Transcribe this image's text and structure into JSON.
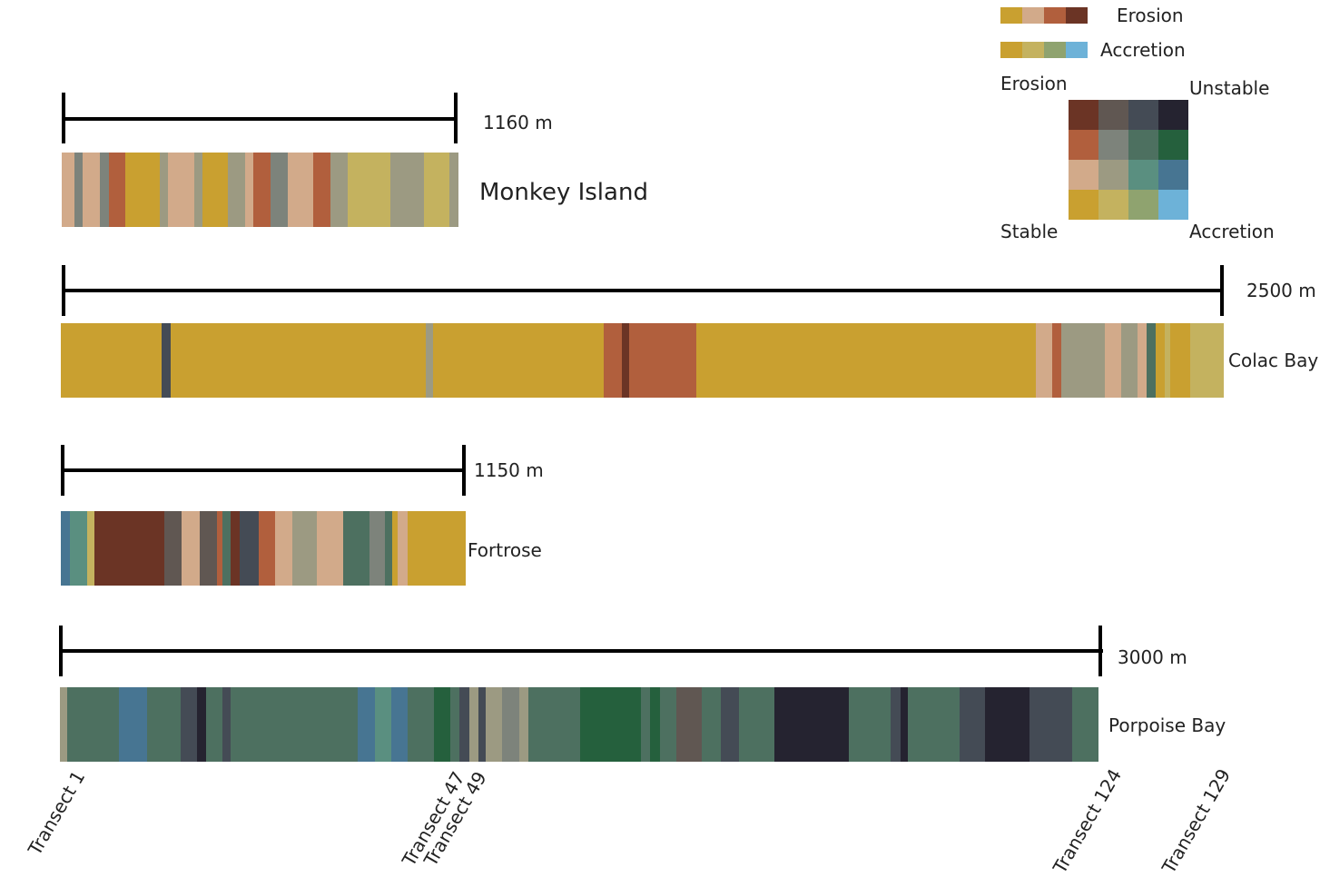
{
  "legend": {
    "erosion_label": "Erosion",
    "accretion_label": "Accretion",
    "erosion_ramp": [
      "#c9a030",
      "#d2aa8a",
      "#b15f3d",
      "#6b3425"
    ],
    "accretion_ramp": [
      "#c9a030",
      "#c4b25f",
      "#8fa36f",
      "#6db2d8"
    ],
    "matrix_labels": {
      "top_left": "Erosion",
      "top_right": "Unstable",
      "bottom_left": "Stable",
      "bottom_right": "Accretion"
    },
    "matrix_colors": [
      [
        "#6b3425",
        "#605752",
        "#444b55",
        "#252330"
      ],
      [
        "#b15f3d",
        "#7d837b",
        "#4d7060",
        "#25603d"
      ],
      [
        "#d2aa8a",
        "#9c9a82",
        "#5a8f80",
        "#477592"
      ],
      [
        "#c9a030",
        "#c4b25f",
        "#8fa36f",
        "#6db2d8"
      ]
    ]
  },
  "sites": [
    {
      "name": "Monkey Island",
      "scale_label": "1160 m",
      "segments": [
        {
          "c": "#d2aa8a",
          "w": 3
        },
        {
          "c": "#7d837b",
          "w": 2
        },
        {
          "c": "#d2aa8a",
          "w": 4
        },
        {
          "c": "#7d837b",
          "w": 2
        },
        {
          "c": "#b15f3d",
          "w": 4
        },
        {
          "c": "#c9a030",
          "w": 8
        },
        {
          "c": "#9c9a82",
          "w": 2
        },
        {
          "c": "#d2aa8a",
          "w": 6
        },
        {
          "c": "#9c9a82",
          "w": 2
        },
        {
          "c": "#c9a030",
          "w": 6
        },
        {
          "c": "#9c9a82",
          "w": 4
        },
        {
          "c": "#d2aa8a",
          "w": 2
        },
        {
          "c": "#b15f3d",
          "w": 4
        },
        {
          "c": "#7d837b",
          "w": 4
        },
        {
          "c": "#d2aa8a",
          "w": 6
        },
        {
          "c": "#b15f3d",
          "w": 4
        },
        {
          "c": "#9c9a82",
          "w": 4
        },
        {
          "c": "#c4b25f",
          "w": 10
        },
        {
          "c": "#9c9a82",
          "w": 8
        },
        {
          "c": "#c4b25f",
          "w": 6
        },
        {
          "c": "#9c9a82",
          "w": 2
        }
      ]
    },
    {
      "name": "Colac Bay",
      "scale_label": "2500 m",
      "segments": [
        {
          "c": "#c9a030",
          "w": 111
        },
        {
          "c": "#444b55",
          "w": 10
        },
        {
          "c": "#c9a030",
          "w": 281
        },
        {
          "c": "#9c9a82",
          "w": 8
        },
        {
          "c": "#c9a030",
          "w": 188
        },
        {
          "c": "#b15f3d",
          "w": 20
        },
        {
          "c": "#6b3425",
          "w": 8
        },
        {
          "c": "#b15f3d",
          "w": 74
        },
        {
          "c": "#c9a030",
          "w": 374
        },
        {
          "c": "#d2aa8a",
          "w": 18
        },
        {
          "c": "#b15f3d",
          "w": 10
        },
        {
          "c": "#9c9a82",
          "w": 48
        },
        {
          "c": "#d2aa8a",
          "w": 18
        },
        {
          "c": "#9c9a82",
          "w": 18
        },
        {
          "c": "#d2aa8a",
          "w": 10
        },
        {
          "c": "#4d7060",
          "w": 10
        },
        {
          "c": "#c9a030",
          "w": 10
        },
        {
          "c": "#c4b25f",
          "w": 6
        },
        {
          "c": "#c9a030",
          "w": 22
        },
        {
          "c": "#c4b25f",
          "w": 37
        }
      ]
    },
    {
      "name": "Fortrose",
      "scale_label": "1150 m",
      "segments": [
        {
          "c": "#477592",
          "w": 10
        },
        {
          "c": "#5a8f80",
          "w": 18
        },
        {
          "c": "#c4b25f",
          "w": 8
        },
        {
          "c": "#6b3425",
          "w": 74
        },
        {
          "c": "#605752",
          "w": 18
        },
        {
          "c": "#d2aa8a",
          "w": 20
        },
        {
          "c": "#605752",
          "w": 18
        },
        {
          "c": "#b15f3d",
          "w": 6
        },
        {
          "c": "#4d7060",
          "w": 8
        },
        {
          "c": "#6b3425",
          "w": 10
        },
        {
          "c": "#444b55",
          "w": 20
        },
        {
          "c": "#b15f3d",
          "w": 18
        },
        {
          "c": "#d2aa8a",
          "w": 18
        },
        {
          "c": "#9c9a82",
          "w": 26
        },
        {
          "c": "#d2aa8a",
          "w": 28
        },
        {
          "c": "#4d7060",
          "w": 28
        },
        {
          "c": "#7d837b",
          "w": 16
        },
        {
          "c": "#4d7060",
          "w": 8
        },
        {
          "c": "#c9a030",
          "w": 6
        },
        {
          "c": "#d2aa8a",
          "w": 10
        },
        {
          "c": "#c9a030",
          "w": 62
        }
      ]
    },
    {
      "name": "Porpoise Bay",
      "scale_label": "3000 m",
      "segments": [
        {
          "c": "#9c9a82",
          "w": 8
        },
        {
          "c": "#4d7060",
          "w": 56
        },
        {
          "c": "#477592",
          "w": 30
        },
        {
          "c": "#4d7060",
          "w": 36
        },
        {
          "c": "#444b55",
          "w": 18
        },
        {
          "c": "#252330",
          "w": 10
        },
        {
          "c": "#4d7060",
          "w": 18
        },
        {
          "c": "#444b55",
          "w": 8
        },
        {
          "c": "#4d7060",
          "w": 138
        },
        {
          "c": "#477592",
          "w": 18
        },
        {
          "c": "#5a8f80",
          "w": 18
        },
        {
          "c": "#477592",
          "w": 18
        },
        {
          "c": "#4d7060",
          "w": 28
        },
        {
          "c": "#25603d",
          "w": 18
        },
        {
          "c": "#4d7060",
          "w": 10
        },
        {
          "c": "#444b55",
          "w": 10
        },
        {
          "c": "#9c9a82",
          "w": 10
        },
        {
          "c": "#444b55",
          "w": 8
        },
        {
          "c": "#9c9a82",
          "w": 18
        },
        {
          "c": "#7d837b",
          "w": 18
        },
        {
          "c": "#9c9a82",
          "w": 10
        },
        {
          "c": "#4d7060",
          "w": 56
        },
        {
          "c": "#25603d",
          "w": 66
        },
        {
          "c": "#4d7060",
          "w": 10
        },
        {
          "c": "#25603d",
          "w": 10
        },
        {
          "c": "#4d7060",
          "w": 18
        },
        {
          "c": "#605752",
          "w": 28
        },
        {
          "c": "#4d7060",
          "w": 20
        },
        {
          "c": "#444b55",
          "w": 20
        },
        {
          "c": "#4d7060",
          "w": 38
        },
        {
          "c": "#252330",
          "w": 80
        },
        {
          "c": "#4d7060",
          "w": 46
        },
        {
          "c": "#444b55",
          "w": 10
        },
        {
          "c": "#252330",
          "w": 8
        },
        {
          "c": "#4d7060",
          "w": 56
        },
        {
          "c": "#444b55",
          "w": 28
        },
        {
          "c": "#252330",
          "w": 48
        },
        {
          "c": "#444b55",
          "w": 46
        },
        {
          "c": "#4d7060",
          "w": 28
        }
      ]
    }
  ],
  "transects": [
    "Transect 1",
    "Transect 47",
    "Transect 49",
    "Transect 124",
    "Transect 129"
  ]
}
